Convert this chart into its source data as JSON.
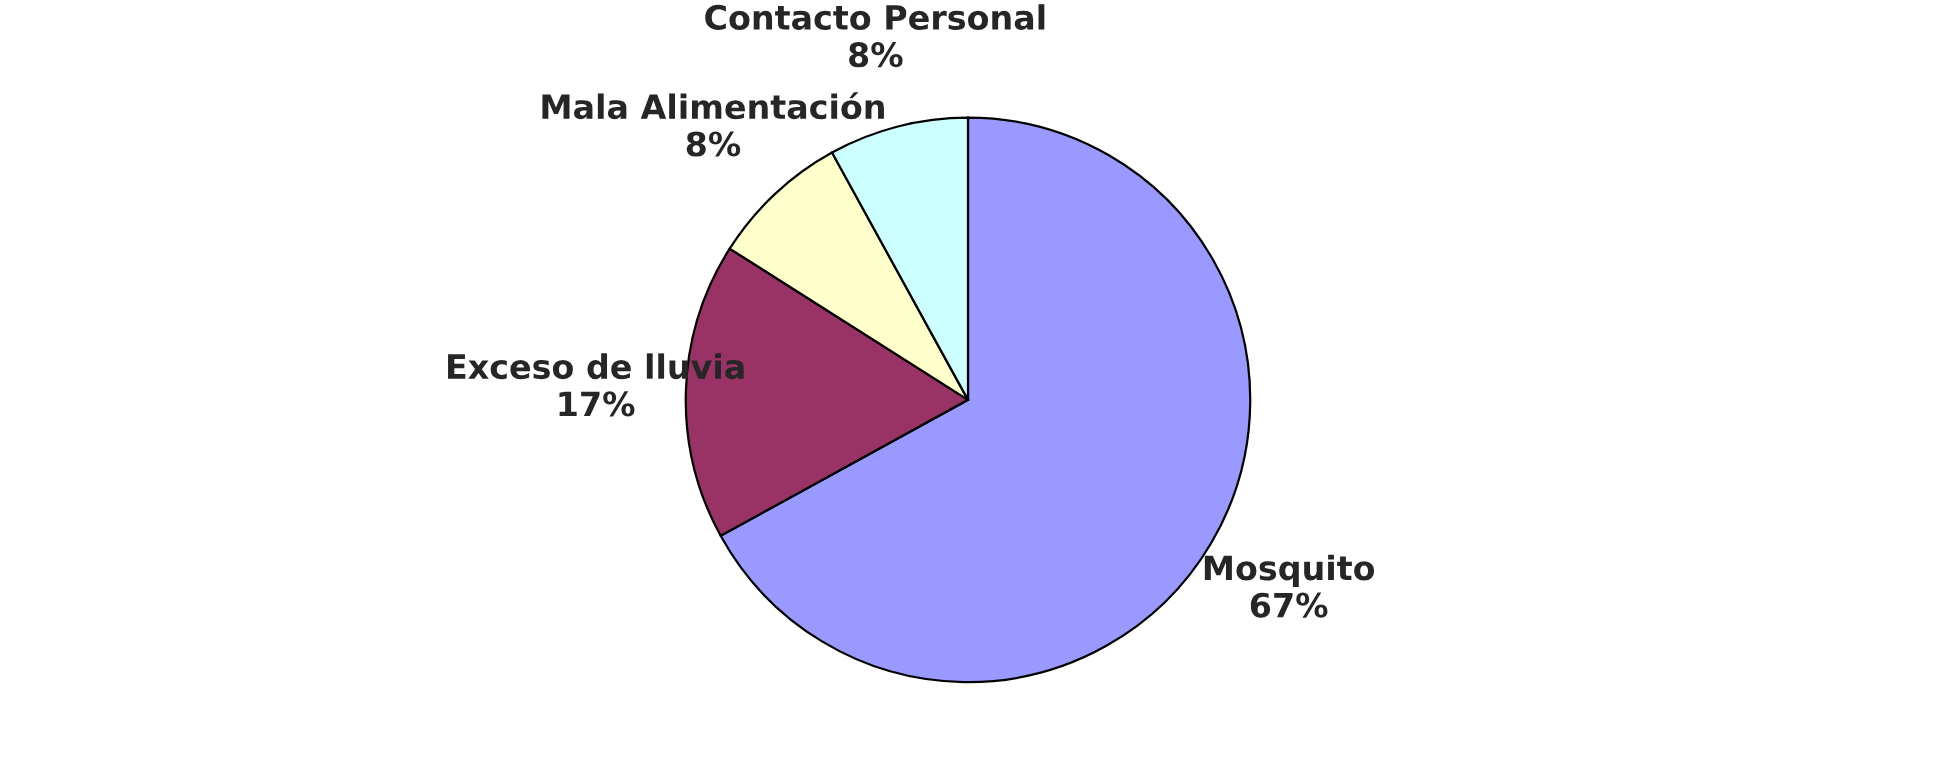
{
  "chart_data": {
    "type": "pie",
    "categories": [
      "Mosquito",
      "Exceso de lluvia",
      "Mala Alimentación",
      "Contacto Personal"
    ],
    "values": [
      67,
      17,
      8,
      8
    ],
    "value_labels": [
      "67%",
      "17%",
      "8%",
      "8%"
    ],
    "colors": [
      "#9999ff",
      "#993366",
      "#ffffcc",
      "#ccffff"
    ]
  }
}
